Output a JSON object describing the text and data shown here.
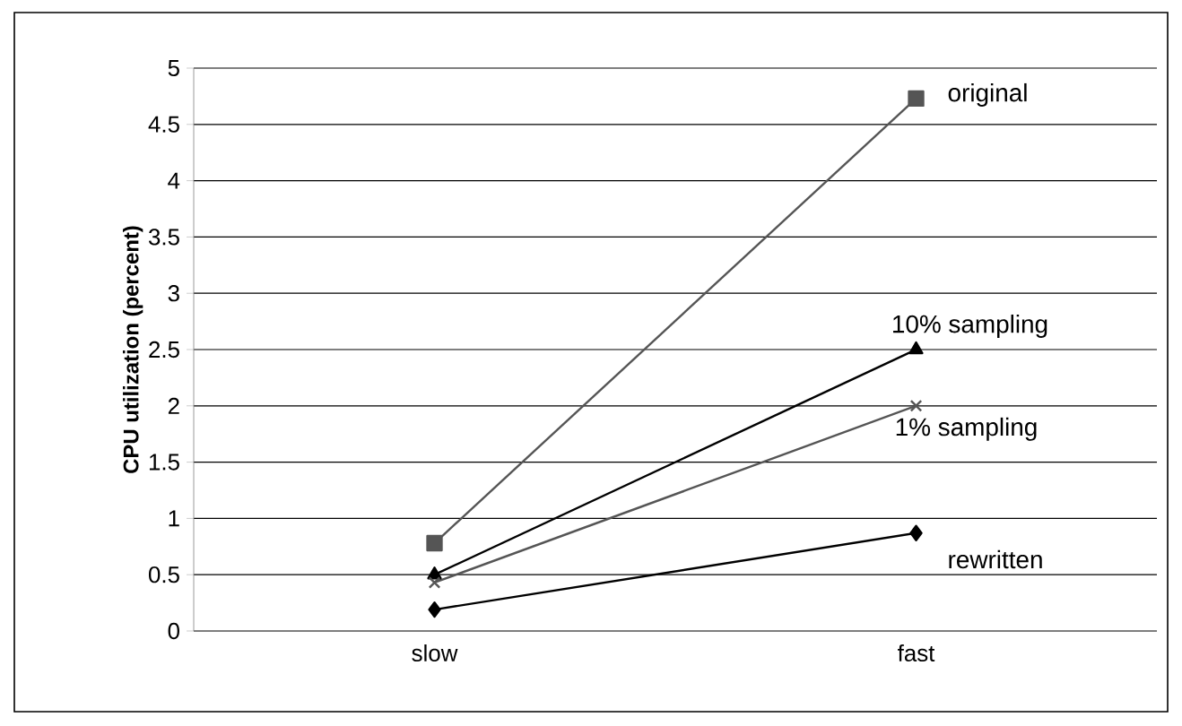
{
  "chart_data": {
    "type": "line",
    "ylabel": "CPU utilization (percent)",
    "categories": [
      "slow",
      "fast"
    ],
    "ylim": [
      0,
      5
    ],
    "yticks": [
      0,
      0.5,
      1,
      1.5,
      2,
      2.5,
      3,
      3.5,
      4,
      4.5,
      5
    ],
    "grid": "y",
    "line_style": "solid",
    "series": [
      {
        "name": "original",
        "color": "#555555",
        "marker": "square",
        "values": [
          0.78,
          4.73
        ]
      },
      {
        "name": "10% sampling",
        "color": "#000000",
        "marker": "triangle",
        "values": [
          0.5,
          2.5
        ]
      },
      {
        "name": "1% sampling",
        "color": "#555555",
        "marker": "cross",
        "values": [
          0.43,
          2.0
        ]
      },
      {
        "name": "rewritten",
        "color": "#000000",
        "marker": "diamond",
        "values": [
          0.19,
          0.87
        ]
      }
    ]
  }
}
